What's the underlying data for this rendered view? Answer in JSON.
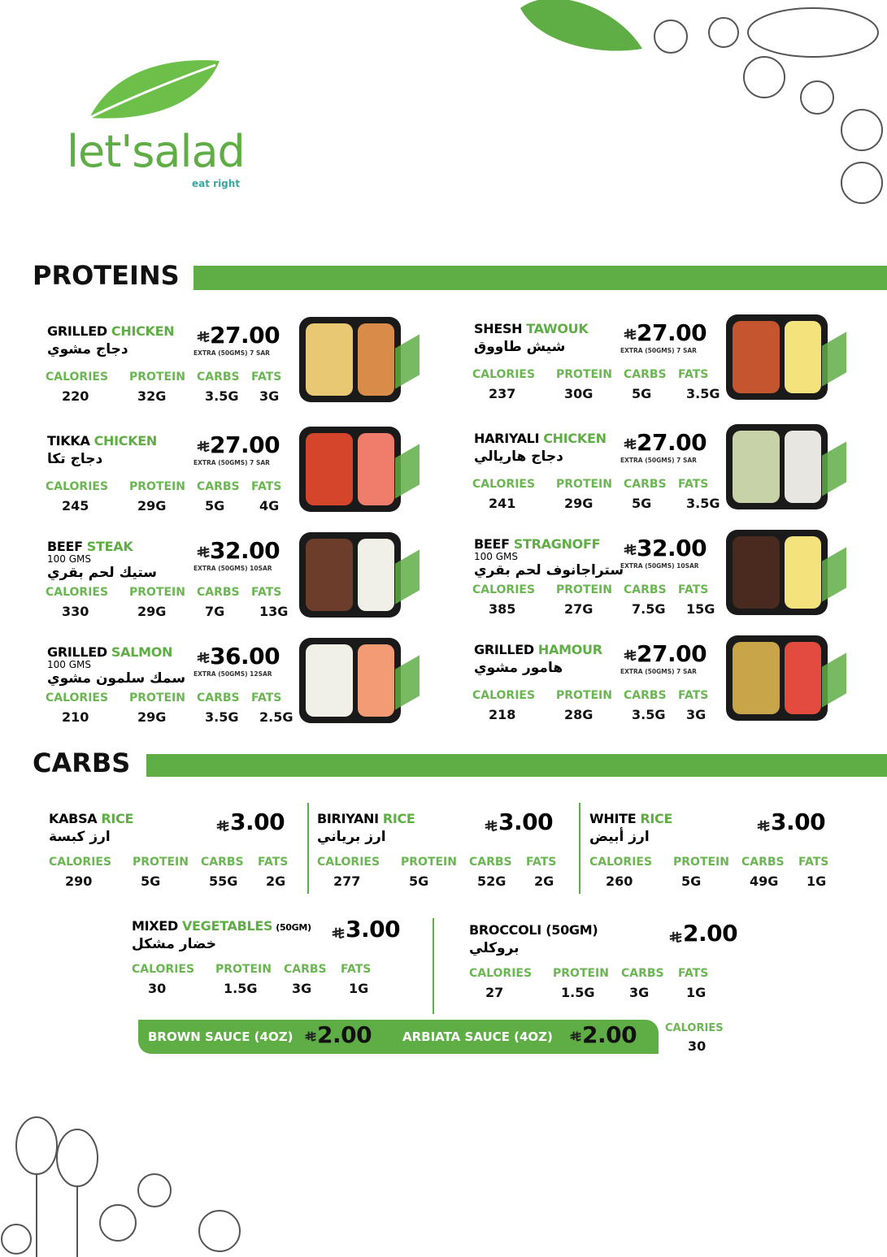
{
  "brand": {
    "name": "let'salad",
    "tagline": "eat right"
  },
  "nutrition_labels": [
    "CALORIES",
    "PROTEIN",
    "CARBS",
    "FATS"
  ],
  "proteins": {
    "title": "PROTEINS",
    "items": [
      {
        "name_1": "GRILLED",
        "name_2": "CHICKEN",
        "arabic": "دجاج مشوي",
        "price": "27.00",
        "extra": "EXTRA (50GMS) 7 SAR",
        "nutrition": [
          "220",
          "32G",
          "3.5G",
          "3G"
        ]
      },
      {
        "name_1": "TIKKA",
        "name_2": "CHICKEN",
        "arabic": "دجاج تكا",
        "price": "27.00",
        "extra": "EXTRA (50GMS) 7 SAR",
        "nutrition": [
          "245",
          "29G",
          "5G",
          "4G"
        ]
      },
      {
        "name_1": "BEEF",
        "name_2": "STEAK",
        "note": "100 GMS",
        "arabic": "ستيك لحم بقري",
        "price": "32.00",
        "extra": "EXTRA (50GMS) 10SAR",
        "nutrition": [
          "330",
          "29G",
          "7G",
          "13G"
        ]
      },
      {
        "name_1": "GRILLED",
        "name_2": "SALMON",
        "note": "100 GMS",
        "arabic": "سمك سلمون مشوي",
        "price": "36.00",
        "extra": "EXTRA (50GMS) 12SAR",
        "nutrition": [
          "210",
          "29G",
          "3.5G",
          "2.5G"
        ]
      },
      {
        "name_1": "SHESH",
        "name_2": "TAWOUK",
        "arabic": "شيش طاووق",
        "price": "27.00",
        "extra": "EXTRA (50GMS) 7 SAR",
        "nutrition": [
          "237",
          "30G",
          "5G",
          "3.5G"
        ]
      },
      {
        "name_1": "HARIYALI",
        "name_2": "CHICKEN",
        "arabic": "دجاج هاريالي",
        "price": "27.00",
        "extra": "EXTRA (50GMS) 7 SAR",
        "nutrition": [
          "241",
          "29G",
          "5G",
          "3.5G"
        ]
      },
      {
        "name_1": "BEEF",
        "name_2": "STRAGNOFF",
        "note": "100 GMS",
        "arabic": "ستراجانوف لحم بقري",
        "price": "32.00",
        "extra": "EXTRA (50GMS) 10SAR",
        "nutrition": [
          "385",
          "27G",
          "7.5G",
          "15G"
        ]
      },
      {
        "name_1": "GRILLED",
        "name_2": "HAMOUR",
        "arabic": "هامور مشوي",
        "price": "27.00",
        "extra": "EXTRA (50GMS) 7 SAR",
        "nutrition": [
          "218",
          "28G",
          "3.5G",
          "3G"
        ]
      }
    ]
  },
  "carbs": {
    "title": "CARBS",
    "items": [
      {
        "name_1": "KABSA",
        "name_2": "RICE",
        "arabic": "ارز كبسة",
        "price": "3.00",
        "nutrition": [
          "290",
          "5G",
          "55G",
          "2G"
        ]
      },
      {
        "name_1": "BIRIYANI",
        "name_2": "RICE",
        "arabic": "ارز برياني",
        "price": "3.00",
        "nutrition": [
          "277",
          "5G",
          "52G",
          "2G"
        ]
      },
      {
        "name_1": "WHITE",
        "name_2": "RICE",
        "arabic": "ارز أبيض",
        "price": "3.00",
        "nutrition": [
          "260",
          "5G",
          "49G",
          "1G"
        ]
      },
      {
        "name_1": "MIXED",
        "name_2": "VEGETABLES",
        "size": "(50GM)",
        "arabic": "خضار مشكل",
        "price": "3.00",
        "nutrition": [
          "30",
          "1.5G",
          "3G",
          "1G"
        ]
      },
      {
        "name_1": "BROCCOLI (50GM)",
        "arabic": "بروكلي",
        "price": "2.00",
        "nutrition": [
          "27",
          "1.5G",
          "3G",
          "1G"
        ]
      }
    ],
    "sauces": [
      {
        "name": "BROWN SAUCE (4OZ)",
        "price": "2.00"
      },
      {
        "name": "ARBIATA SAUCE (4OZ)",
        "price": "2.00"
      }
    ],
    "sauce_calories_label": "CALORIES",
    "sauce_calories": "30"
  }
}
